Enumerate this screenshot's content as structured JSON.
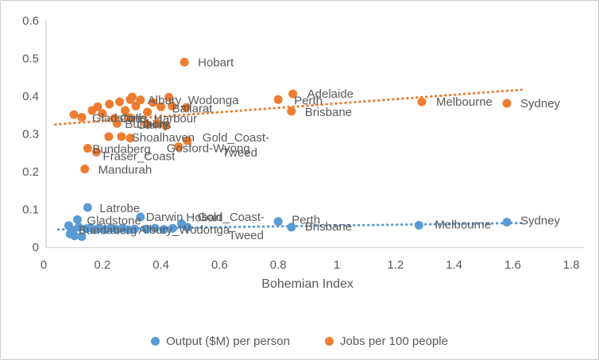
{
  "figure": {
    "background": "#FFFFFF",
    "border_color": "#C9C9C9"
  },
  "chart_data": {
    "type": "scatter",
    "title": "",
    "xlabel": "Bohemian Index",
    "ylabel": "",
    "xlim": [
      0,
      1.8
    ],
    "ylim": [
      0,
      0.6
    ],
    "xticks": [
      "0",
      "0.2",
      "0.4",
      "0.6",
      "0.8",
      "1",
      "1.2",
      "1.4",
      "1.6",
      "1.8"
    ],
    "yticks": [
      "0",
      "0.1",
      "0.2",
      "0.3",
      "0.4",
      "0.5",
      "0.6"
    ],
    "grid": false,
    "legend_position": "bottom",
    "axis_color": "#D6D6D6",
    "text_color": "#595959",
    "series": [
      {
        "name": "Output ($M) per person",
        "color": "#5B9BD5",
        "marker": "circle",
        "trendline": {
          "style": "dotted",
          "x_start": 0.05,
          "y_start": 0.047,
          "x_end": 1.63,
          "y_end": 0.064
        },
        "points": [
          {
            "x": 0.15,
            "y": 0.105,
            "label": "Latrobe",
            "label_dx": 15,
            "label_dy": 6
          },
          {
            "x": 0.115,
            "y": 0.073,
            "label": "Gladstone",
            "label_dx": 12,
            "label_dy": 6
          },
          {
            "x": 0.33,
            "y": 0.08,
            "label": "Darwin",
            "label_dx": 7,
            "label_dy": 5
          },
          {
            "x": 0.1,
            "y": 0.045,
            "label": "Bundaberg",
            "label_dx": 7,
            "label_dy": 5
          },
          {
            "x": 0.31,
            "y": 0.048,
            "label": "Albury_Wodonga",
            "label_dx": 5,
            "label_dy": 6
          },
          {
            "x": 0.47,
            "y": 0.062,
            "label": "Hobart",
            "label_dx": 6,
            "label_dy": -3
          },
          {
            "x": 0.49,
            "y": 0.053,
            "label_lines": [
              {
                "text": "Gold_Coast-",
                "dx": 13,
                "dy": -8
              },
              {
                "text": "Tweed",
                "dx": 52,
                "dy": 15
              }
            ]
          },
          {
            "x": 0.8,
            "y": 0.068,
            "label": "Perth",
            "label_dx": 17,
            "label_dy": 3
          },
          {
            "x": 0.845,
            "y": 0.053,
            "label": "Brisbane",
            "label_dx": 17,
            "label_dy": 4
          },
          {
            "x": 1.28,
            "y": 0.058,
            "label": "Melbourne",
            "label_dx": 20,
            "label_dy": 4
          },
          {
            "x": 1.58,
            "y": 0.066,
            "label": "Sydney",
            "label_dx": 17,
            "label_dy": 3
          },
          {
            "x": 0.085,
            "y": 0.057
          },
          {
            "x": 0.09,
            "y": 0.035
          },
          {
            "x": 0.105,
            "y": 0.03
          },
          {
            "x": 0.12,
            "y": 0.053
          },
          {
            "x": 0.13,
            "y": 0.028
          },
          {
            "x": 0.145,
            "y": 0.049
          },
          {
            "x": 0.16,
            "y": 0.051
          },
          {
            "x": 0.175,
            "y": 0.046
          },
          {
            "x": 0.19,
            "y": 0.05
          },
          {
            "x": 0.21,
            "y": 0.047
          },
          {
            "x": 0.23,
            "y": 0.05
          },
          {
            "x": 0.25,
            "y": 0.047
          },
          {
            "x": 0.27,
            "y": 0.05
          },
          {
            "x": 0.29,
            "y": 0.046
          },
          {
            "x": 0.35,
            "y": 0.048
          },
          {
            "x": 0.38,
            "y": 0.05
          },
          {
            "x": 0.41,
            "y": 0.047
          },
          {
            "x": 0.44,
            "y": 0.05
          }
        ]
      },
      {
        "name": "Jobs per 100 people",
        "color": "#ED7D31",
        "marker": "circle",
        "trendline": {
          "style": "dotted",
          "x_start": 0.04,
          "y_start": 0.325,
          "x_end": 1.63,
          "y_end": 0.417
        },
        "points": [
          {
            "x": 0.48,
            "y": 0.49,
            "label": "Hobart",
            "label_dx": 17,
            "label_dy": 5
          },
          {
            "x": 0.33,
            "y": 0.39,
            "label": "Albury_Wodonga",
            "label_dx": 9,
            "label_dy": 5
          },
          {
            "x": 0.4,
            "y": 0.372,
            "label": "Ballarat",
            "label_dx": 14,
            "label_dy": 7
          },
          {
            "x": 0.13,
            "y": 0.344,
            "label": "Gladstone",
            "label_dx": 13,
            "label_dy": 6
          },
          {
            "x": 0.295,
            "y": 0.343,
            "label": "Coffs_Harbour",
            "label_dx": -13,
            "label_dy": 6
          },
          {
            "x": 0.25,
            "y": 0.328,
            "label": "Bunbury",
            "label_dx": 10,
            "label_dy": 6
          },
          {
            "x": 0.35,
            "y": 0.326,
            "label": "Cairns",
            "label_dx": -12,
            "label_dy": 6
          },
          {
            "x": 0.265,
            "y": 0.293,
            "label": "Shoalhaven",
            "label_dx": 13,
            "label_dy": 6
          },
          {
            "x": 0.49,
            "y": 0.282,
            "label_lines": [
              {
                "text": "Gold_Coast-",
                "dx": 19,
                "dy": 1
              },
              {
                "text": "Tweed",
                "dx": 44,
                "dy": 20
              }
            ]
          },
          {
            "x": 0.46,
            "y": 0.266,
            "label": "Gosford-Wyong",
            "label_dx": -15,
            "label_dy": 7
          },
          {
            "x": 0.15,
            "y": 0.262,
            "label": "Bundaberg",
            "label_dx": 6,
            "label_dy": 6
          },
          {
            "x": 0.18,
            "y": 0.252,
            "label": "Fraser_Coast",
            "label_dx": 8,
            "label_dy": 10
          },
          {
            "x": 0.14,
            "y": 0.207,
            "label": "Mandurah",
            "label_dx": 17,
            "label_dy": 6
          },
          {
            "x": 0.8,
            "y": 0.391,
            "label": "Perth",
            "label_dx": 20,
            "label_dy": 6
          },
          {
            "x": 0.85,
            "y": 0.406,
            "label": "Adelaide",
            "label_dx": 18,
            "label_dy": 5
          },
          {
            "x": 0.845,
            "y": 0.36,
            "label": "Brisbane",
            "label_dx": 17,
            "label_dy": 6
          },
          {
            "x": 1.29,
            "y": 0.385,
            "label": "Melbourne",
            "label_dx": 18,
            "label_dy": 5
          },
          {
            "x": 1.58,
            "y": 0.381,
            "label": "Sydney",
            "label_dx": 17,
            "label_dy": 5
          },
          {
            "x": 0.103,
            "y": 0.351
          },
          {
            "x": 0.165,
            "y": 0.362
          },
          {
            "x": 0.184,
            "y": 0.372
          },
          {
            "x": 0.2,
            "y": 0.354
          },
          {
            "x": 0.224,
            "y": 0.379
          },
          {
            "x": 0.241,
            "y": 0.341
          },
          {
            "x": 0.259,
            "y": 0.385
          },
          {
            "x": 0.278,
            "y": 0.362
          },
          {
            "x": 0.295,
            "y": 0.391
          },
          {
            "x": 0.302,
            "y": 0.398
          },
          {
            "x": 0.314,
            "y": 0.374
          },
          {
            "x": 0.354,
            "y": 0.358
          },
          {
            "x": 0.373,
            "y": 0.383
          },
          {
            "x": 0.427,
            "y": 0.397
          },
          {
            "x": 0.438,
            "y": 0.374
          },
          {
            "x": 0.486,
            "y": 0.37
          },
          {
            "x": 0.389,
            "y": 0.328
          },
          {
            "x": 0.416,
            "y": 0.322
          },
          {
            "x": 0.222,
            "y": 0.293
          },
          {
            "x": 0.295,
            "y": 0.289
          }
        ]
      }
    ]
  }
}
